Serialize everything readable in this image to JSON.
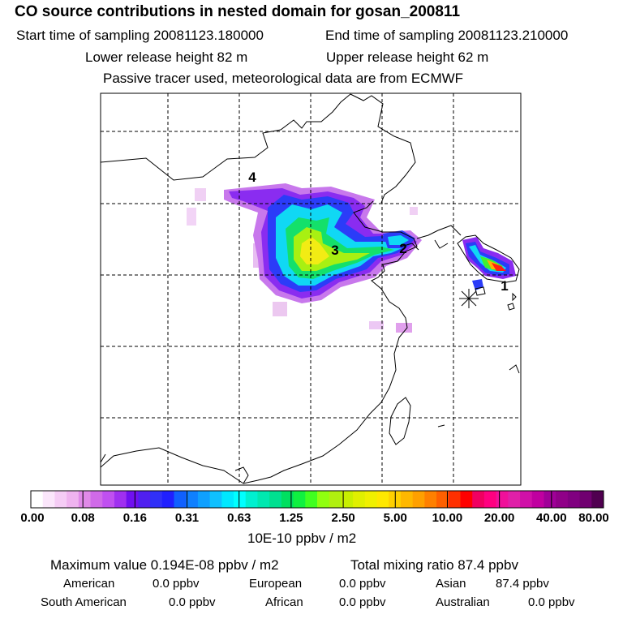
{
  "title": "CO  source contributions in nested domain for gosan_200811",
  "header": {
    "start_label": "Start time of sampling 20081123.180000",
    "end_label": "End time of sampling 20081123.210000",
    "lower_label": "Lower release height   82 m",
    "upper_label": "Upper release height   62 m",
    "note": "Passive tracer used, meteorological data are from ECMWF"
  },
  "map": {
    "region_labels": [
      "4",
      "3",
      "2",
      "1"
    ],
    "receptor": "gosan",
    "colors": {
      "land_line": "#000000",
      "grid": "#000000"
    }
  },
  "colorbar": {
    "tick_labels": [
      "0.00",
      "0.08",
      "0.16",
      "0.31",
      "0.63",
      "1.25",
      "2.50",
      "5.00",
      "10.00",
      "20.00",
      "40.00",
      "80.00"
    ],
    "colors": [
      "#ffffff",
      "#fbe6fb",
      "#f5ccf5",
      "#efb3ef",
      "#e08ae8",
      "#d06ae8",
      "#c050f0",
      "#a030f0",
      "#7010f0",
      "#5020f0",
      "#3030f8",
      "#2020ff",
      "#1060ff",
      "#1080ff",
      "#10a0ff",
      "#10c0ff",
      "#00e8ff",
      "#00ffff",
      "#00f0d0",
      "#00e8b0",
      "#00e090",
      "#00e060",
      "#10f040",
      "#40ff20",
      "#90ff10",
      "#b0f010",
      "#c8f000",
      "#e0f000",
      "#f0f000",
      "#ffe800",
      "#ffd000",
      "#ffb800",
      "#ffa000",
      "#ff8000",
      "#ff6000",
      "#ff3000",
      "#ff0000",
      "#f00060",
      "#ff0080",
      "#f0109a",
      "#e020a8",
      "#d010a8",
      "#c000a0",
      "#a00098",
      "#900088",
      "#800080",
      "#700070",
      "#500050"
    ],
    "unit": "10E-10 ppbv / m2"
  },
  "stats": {
    "maximum": "Maximum value  0.194E-08 ppbv / m2",
    "total": "Total mixing ratio       87.4 ppbv",
    "american_label": "American",
    "american_value": "0.0 ppbv",
    "european_label": "European",
    "european_value": "0.0 ppbv",
    "asian_label": "Asian",
    "asian_value": "87.4 ppbv",
    "south_american_label": "South American",
    "south_american_value": "0.0 ppbv",
    "african_label": "African",
    "african_value": "0.0 ppbv",
    "australian_label": "Australian",
    "australian_value": "0.0 ppbv"
  }
}
